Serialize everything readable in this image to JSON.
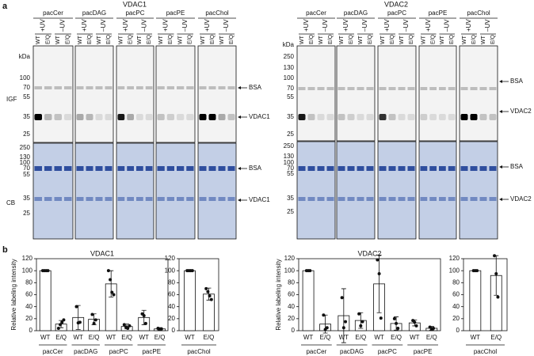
{
  "panel_a": {
    "label": "a",
    "row_labels": [
      "IGF",
      "CB"
    ],
    "kda_unit": "kDa",
    "blots": [
      {
        "title": "VDAC1",
        "lipids": [
          "pacCer",
          "pacDAG",
          "pacPC",
          "pacPE",
          "pacChol"
        ],
        "uv_labels": [
          "+UV",
          "–UV"
        ],
        "lanes": [
          "WT",
          "E/Q"
        ],
        "igf_markers": [
          100,
          70,
          55,
          35,
          25
        ],
        "cb_markers": [
          250,
          130,
          100,
          70,
          55,
          35,
          25
        ],
        "igf_bands": [
          "BSA",
          "VDAC1"
        ],
        "cb_bands": [
          "BSA",
          "VDAC1"
        ]
      },
      {
        "title": "VDAC2",
        "lipids": [
          "pacCer",
          "pacDAG",
          "pacPC",
          "pacPE",
          "pacChol"
        ],
        "uv_labels": [
          "+UV",
          "–UV"
        ],
        "lanes": [
          "WT",
          "E/Q"
        ],
        "igf_markers": [
          250,
          130,
          100,
          70,
          55,
          35,
          25
        ],
        "cb_markers": [
          250,
          130,
          100,
          70,
          55,
          35,
          25
        ],
        "igf_bands": [
          "BSA",
          "VDAC2"
        ],
        "cb_bands": [
          "BSA",
          "VDAC2"
        ]
      }
    ]
  },
  "panel_b": {
    "label": "b",
    "y_label": "Relative labeling intensity",
    "ylim": [
      0,
      120
    ],
    "yticks": [
      0,
      20,
      40,
      60,
      80,
      100,
      120
    ],
    "charts": [
      {
        "title": "VDAC1",
        "groups": [
          {
            "name": "pacCer",
            "categories": [
              "WT",
              "E/Q"
            ],
            "values": [
              100,
              11
            ],
            "errors": [
              0,
              6
            ],
            "points": [
              [
                100,
                100,
                100,
                100
              ],
              [
                4,
                10,
                14,
                18
              ]
            ]
          },
          {
            "name": "pacDAG",
            "categories": [
              "WT",
              "E/Q"
            ],
            "values": [
              22,
              19
            ],
            "errors": [
              20,
              9
            ],
            "points": [
              [
                40,
                13,
                14
              ],
              [
                27,
                12,
                18
              ]
            ]
          },
          {
            "name": "pacPC",
            "categories": [
              "WT",
              "E/Q"
            ],
            "values": [
              78,
              7
            ],
            "errors": [
              22,
              4
            ],
            "points": [
              [
                100,
                85,
                64,
                60
              ],
              [
                10,
                6,
                4,
                8
              ]
            ]
          },
          {
            "name": "pacPE",
            "categories": [
              "WT",
              "E/Q"
            ],
            "values": [
              22,
              3
            ],
            "errors": [
              12,
              2
            ],
            "points": [
              [
                28,
                25,
                12
              ],
              [
                4,
                2,
                3
              ]
            ]
          }
        ]
      },
      {
        "groups": [
          {
            "name": "pacChol",
            "categories": [
              "WT",
              "E/Q"
            ],
            "values": [
              100,
              61
            ],
            "errors": [
              0,
              10
            ],
            "points": [
              [
                100,
                100,
                100,
                100
              ],
              [
                70,
                65,
                58,
                52
              ]
            ]
          }
        ]
      },
      {
        "title": "VDAC2",
        "groups": [
          {
            "name": "pacCer",
            "categories": [
              "WT",
              "E/Q"
            ],
            "values": [
              100,
              11
            ],
            "errors": [
              0,
              15
            ],
            "points": [
              [
                100,
                100,
                100
              ],
              [
                26,
                2,
                5
              ]
            ]
          },
          {
            "name": "pacDAG",
            "categories": [
              "WT",
              "E/Q"
            ],
            "values": [
              25,
              17
            ],
            "errors": [
              45,
              13
            ],
            "points": [
              [
                55,
                5,
                15
              ],
              [
                28,
                8,
                15
              ]
            ]
          },
          {
            "name": "pacPC",
            "categories": [
              "WT",
              "E/Q"
            ],
            "values": [
              78,
              12
            ],
            "errors": [
              48,
              11
            ],
            "points": [
              [
                118,
                95,
                21
              ],
              [
                20,
                12,
                4
              ]
            ]
          },
          {
            "name": "pacPE",
            "categories": [
              "WT",
              "E/Q"
            ],
            "values": [
              13,
              4
            ],
            "errors": [
              5,
              3
            ],
            "points": [
              [
                17,
                14,
                8
              ],
              [
                6,
                2,
                4
              ]
            ]
          }
        ]
      },
      {
        "groups": [
          {
            "name": "pacChol",
            "categories": [
              "WT",
              "E/Q"
            ],
            "values": [
              100,
              92
            ],
            "errors": [
              0,
              33
            ],
            "points": [
              [
                100,
                100,
                100
              ],
              [
                125,
                95,
                56
              ]
            ]
          }
        ]
      }
    ]
  }
}
